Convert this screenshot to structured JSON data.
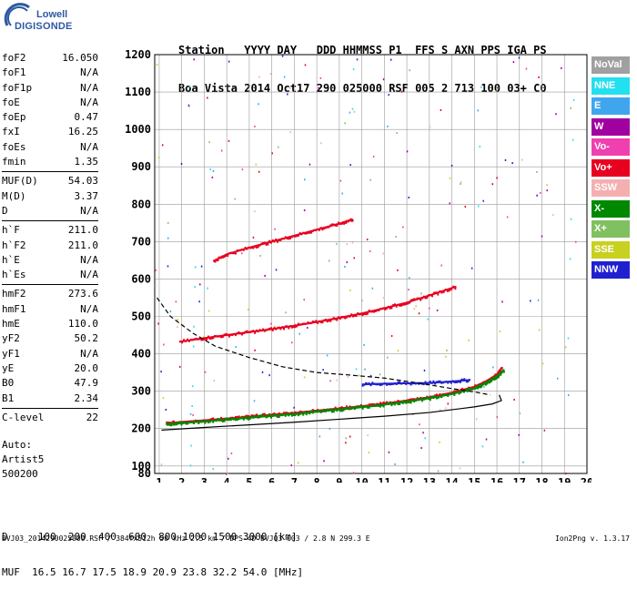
{
  "logo": {
    "line1": "Lowell",
    "line2": "DIGISONDE"
  },
  "header": {
    "line1": "Station   YYYY DAY   DDD HHMMSS P1  FFS S AXN PPS IGA PS",
    "line2": "Boa Vista 2014 Oct17 290 025000 RSF 005 2 713 100 03+ C0"
  },
  "params": [
    [
      {
        "name": "foF2",
        "value": "16.050"
      },
      {
        "name": "foF1",
        "value": "N/A"
      },
      {
        "name": "foF1p",
        "value": "N/A"
      },
      {
        "name": "foE",
        "value": "N/A"
      },
      {
        "name": "foEp",
        "value": "0.47"
      },
      {
        "name": "fxI",
        "value": "16.25"
      },
      {
        "name": "foEs",
        "value": "N/A"
      },
      {
        "name": "fmin",
        "value": "1.35"
      }
    ],
    [
      {
        "name": "MUF(D)",
        "value": "54.03"
      },
      {
        "name": "M(D)",
        "value": "3.37"
      },
      {
        "name": "D",
        "value": "N/A"
      }
    ],
    [
      {
        "name": "h`F",
        "value": "211.0"
      },
      {
        "name": "h`F2",
        "value": "211.0"
      },
      {
        "name": "h`E",
        "value": "N/A"
      },
      {
        "name": "h`Es",
        "value": "N/A"
      }
    ],
    [
      {
        "name": "hmF2",
        "value": "273.6"
      },
      {
        "name": "hmF1",
        "value": "N/A"
      },
      {
        "name": "hmE",
        "value": "110.0"
      },
      {
        "name": "yF2",
        "value": "50.2"
      },
      {
        "name": "yF1",
        "value": "N/A"
      },
      {
        "name": "yE",
        "value": "20.0"
      },
      {
        "name": "B0",
        "value": "47.9"
      },
      {
        "name": "B1",
        "value": "2.34"
      }
    ],
    [
      {
        "name": "C-level",
        "value": "22"
      }
    ]
  ],
  "auto": {
    "line1": "Auto:",
    "line2": "Artist5",
    "line3": "500200"
  },
  "bottom": {
    "line1": "D     100  200  400  600  800 1000 1500 3000 [km]",
    "line2": "MUF  16.5 16.7 17.5 18.9 20.9 23.8 32.2 54.0 [MHz]"
  },
  "footer": {
    "left": "BVJ03_2014290025000.RSF / 384fx512h 50 kHz 2.5 km / DPS-4D BVJ03 003 / 2.8 N 299.3 E",
    "right": "Ion2Png v. 1.3.17"
  },
  "legend": [
    {
      "label": "NoVal",
      "color": "#a0a0a0"
    },
    {
      "label": "NNE",
      "color": "#22e0f0"
    },
    {
      "label": "E",
      "color": "#3fa6ee"
    },
    {
      "label": "W",
      "color": "#a000a0"
    },
    {
      "label": "Vo-",
      "color": "#f040b0"
    },
    {
      "label": "Vo+",
      "color": "#e80020"
    },
    {
      "label": "SSW",
      "color": "#f4b0b0"
    },
    {
      "label": "X-",
      "color": "#008800"
    },
    {
      "label": "X+",
      "color": "#80c060"
    },
    {
      "label": "SSE",
      "color": "#c8d020"
    },
    {
      "label": "NNW",
      "color": "#2020d0"
    }
  ],
  "chart_data": {
    "type": "scatter",
    "xlim": [
      0.8,
      20.0
    ],
    "ylim": [
      80,
      1200
    ],
    "xticks": [
      1,
      2,
      3,
      4,
      5,
      6,
      7,
      8,
      9,
      10,
      11,
      12,
      13,
      14,
      15,
      16,
      17,
      18,
      19,
      20
    ],
    "yticks": [
      80,
      100,
      200,
      300,
      400,
      500,
      600,
      700,
      800,
      900,
      1000,
      1100,
      1200
    ],
    "grid": true,
    "series": [
      {
        "name": "O trace (Vo+)",
        "color": "#e80020",
        "x": [
          1.3,
          2,
          3,
          4,
          5,
          6,
          7,
          8,
          9,
          10,
          11,
          12,
          13,
          14,
          15,
          15.5,
          16,
          16.2
        ],
        "y": [
          214,
          218,
          222,
          227,
          232,
          237,
          242,
          248,
          254,
          260,
          267,
          275,
          284,
          296,
          312,
          326,
          345,
          362
        ]
      },
      {
        "name": "X trace (X-)",
        "color": "#008800",
        "x": [
          1.3,
          2,
          3,
          4,
          5,
          6,
          7,
          8,
          9,
          10,
          11,
          12,
          13,
          14,
          15,
          15.5,
          16,
          16.3
        ],
        "y": [
          211,
          215,
          219,
          224,
          229,
          234,
          239,
          245,
          251,
          257,
          264,
          272,
          281,
          292,
          308,
          322,
          340,
          355
        ]
      },
      {
        "name": "2nd hop (Vo+)",
        "color": "#e80020",
        "x": [
          1.9,
          3,
          4,
          5,
          6,
          7,
          8,
          9,
          10,
          11,
          12,
          13,
          14.2
        ],
        "y": [
          432,
          442,
          450,
          458,
          466,
          475,
          485,
          496,
          508,
          522,
          537,
          556,
          580
        ]
      },
      {
        "name": "3rd hop (Vo+)",
        "color": "#e80020",
        "x": [
          3.4,
          4,
          5,
          6,
          7,
          8,
          9,
          9.6
        ],
        "y": [
          648,
          666,
          684,
          700,
          716,
          732,
          748,
          760
        ]
      },
      {
        "name": "Oblique (NNW)",
        "color": "#2020d0",
        "x": [
          10,
          11,
          12,
          13,
          14,
          14.8
        ],
        "y": [
          318,
          320,
          321,
          322,
          326,
          330
        ]
      },
      {
        "name": "Model profile",
        "color": "#000000",
        "x": [
          1.1,
          3,
          5,
          7,
          9,
          11,
          13,
          15,
          15.8,
          16.2,
          16.1
        ],
        "y": [
          196,
          203,
          210,
          217,
          225,
          233,
          243,
          258,
          266,
          275,
          290
        ]
      },
      {
        "name": "Extrapolated",
        "color": "#000000",
        "x": [
          0.9,
          1.5,
          2.5,
          3.5,
          5,
          6.5,
          8,
          9.5,
          11,
          12.5,
          14,
          15,
          15.7
        ],
        "y": [
          550,
          500,
          455,
          420,
          390,
          365,
          350,
          343,
          335,
          322,
          307,
          298,
          290
        ]
      }
    ]
  }
}
